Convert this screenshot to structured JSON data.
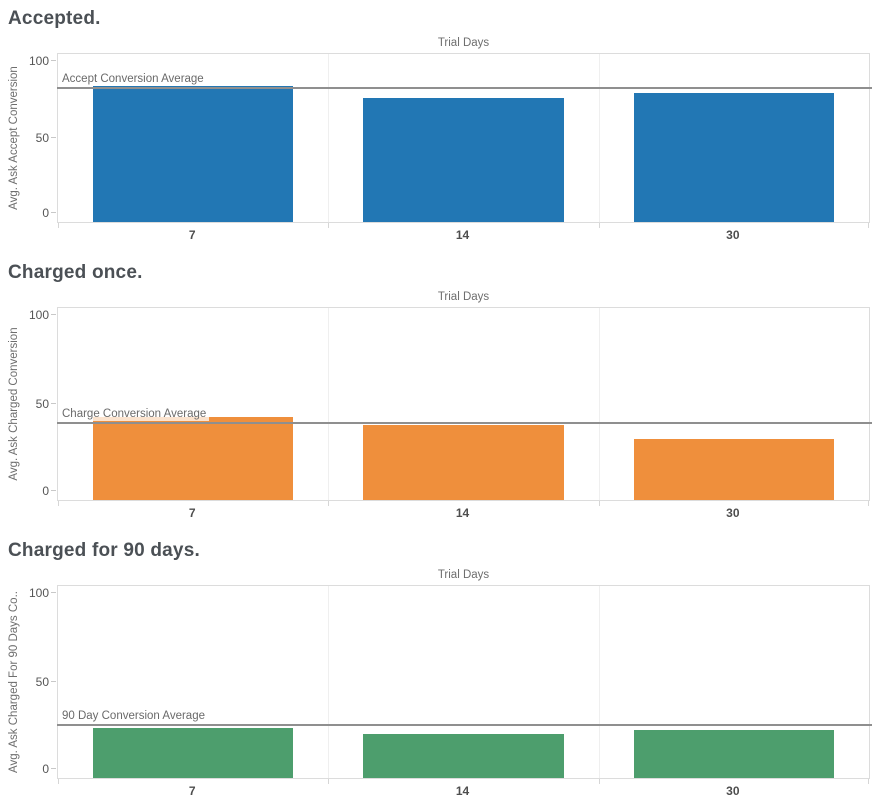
{
  "page": {
    "background": "#ffffff"
  },
  "chart_data": [
    {
      "type": "bar",
      "title": "Accepted.",
      "top_axis_title": "Trial Days",
      "xlabel": "Trial Days",
      "ylabel": "Avg. Ask Accept Conversion",
      "categories": [
        "7",
        "14",
        "30"
      ],
      "values": [
        81,
        74,
        77
      ],
      "ylim": [
        0,
        100
      ],
      "yticks": [
        0,
        50,
        100
      ],
      "grid": "off",
      "legend": "none",
      "bar_color": "#2277b4",
      "reference_line": {
        "label": "Accept Conversion Average",
        "value": 80,
        "color": "#8f8f8f"
      }
    },
    {
      "type": "bar",
      "title": "Charged once.",
      "top_axis_title": "Trial Days",
      "xlabel": "Trial Days",
      "ylabel": "Avg. Ask Charged Conversion",
      "categories": [
        "7",
        "14",
        "30"
      ],
      "values": [
        43,
        39,
        32
      ],
      "ylim": [
        0,
        100
      ],
      "yticks": [
        0,
        50,
        100
      ],
      "grid": "off",
      "legend": "none",
      "bar_color": "#ef8f3c",
      "reference_line": {
        "label": "Charge Conversion Average",
        "value": 40,
        "color": "#8f8f8f"
      }
    },
    {
      "type": "bar",
      "title": "Charged for 90 days.",
      "top_axis_title": "Trial Days",
      "xlabel": "Trial Days",
      "ylabel": "Avg. Ask Charged For 90 Days Co..",
      "categories": [
        "7",
        "14",
        "30"
      ],
      "values": [
        26,
        23,
        25
      ],
      "ylim": [
        0,
        100
      ],
      "yticks": [
        0,
        50,
        100
      ],
      "grid": "off",
      "legend": "none",
      "bar_color": "#4d9e6d",
      "reference_line": {
        "label": "90 Day Conversion Average",
        "value": 27.5,
        "color": "#8f8f8f"
      }
    }
  ]
}
